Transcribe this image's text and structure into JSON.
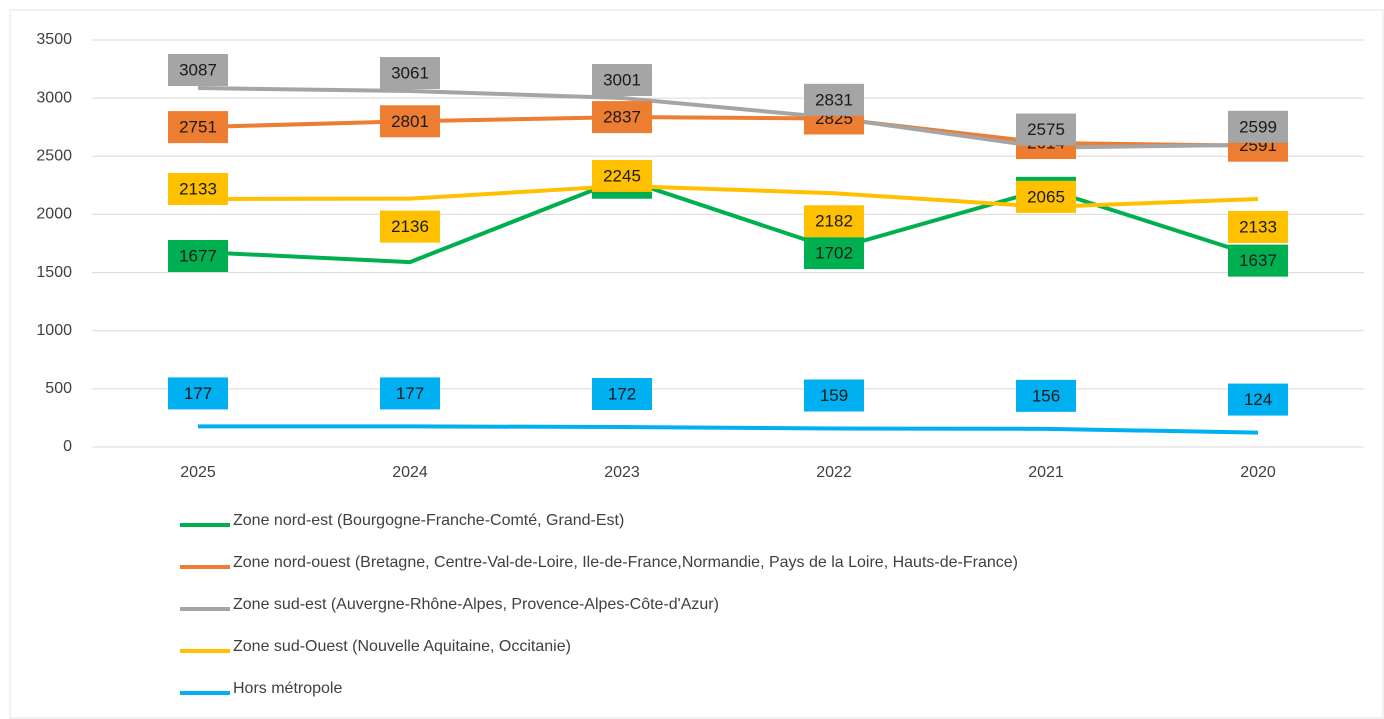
{
  "chart_data": {
    "type": "line",
    "categories": [
      "2025",
      "2024",
      "2023",
      "2022",
      "2021",
      "2020"
    ],
    "series": [
      {
        "name": "Zone nord-est (Bourgogne-Franche-Comté, Grand-Est)",
        "color": "#00b050",
        "values": [
          1677,
          1590,
          2307,
          1702,
          2220,
          1637
        ],
        "value_labels": [
          "1677",
          null,
          "2307",
          "1702",
          "2220",
          "1637"
        ]
      },
      {
        "name": "Zone nord-ouest (Bretagne, Centre-Val-de-Loire, Ile-de-France,Normandie, Pays de la Loire, Hauts-de-France)",
        "color": "#ed7d31",
        "values": [
          2751,
          2801,
          2837,
          2825,
          2614,
          2591
        ]
      },
      {
        "name": "Zone sud-est (Auvergne-Rhône-Alpes, Provence-Alpes-Côte-d'Azur)",
        "color": "#a5a5a5",
        "values": [
          3087,
          3061,
          3001,
          2831,
          2575,
          2599
        ]
      },
      {
        "name": "Zone sud-Ouest (Nouvelle Aquitaine, Occitanie)",
        "color": "#ffc000",
        "values": [
          2133,
          2136,
          2245,
          2182,
          2065,
          2133
        ]
      },
      {
        "name": "Hors métropole",
        "color": "#00b0f0",
        "values": [
          177,
          177,
          172,
          159,
          156,
          124
        ]
      }
    ],
    "ylim": [
      0,
      3500
    ],
    "yticks": [
      0,
      500,
      1000,
      1500,
      2000,
      2500,
      3000,
      3500
    ],
    "grid": true
  }
}
